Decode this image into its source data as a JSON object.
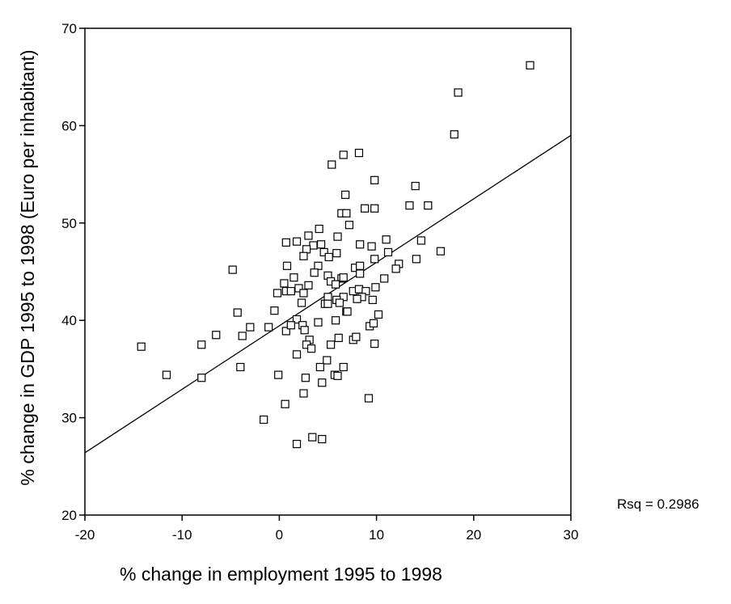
{
  "chart_data": {
    "type": "scatter",
    "xlabel": "% change in employment 1995 to 1998",
    "ylabel": "% change in GDP 1995 to 1998 (Euro per inhabitant)",
    "xlim": [
      -20,
      30
    ],
    "ylim": [
      20,
      70
    ],
    "xticks": [
      -20,
      -10,
      0,
      10,
      20,
      30
    ],
    "yticks": [
      20,
      30,
      40,
      50,
      60,
      70
    ],
    "annotation": "Rsq = 0.2986",
    "marker": "open-square",
    "grid": false,
    "fit_line": {
      "x": [
        -20,
        30
      ],
      "y": [
        26.4,
        59.0
      ]
    },
    "points": [
      [
        25.8,
        66.2
      ],
      [
        18.4,
        63.4
      ],
      [
        18.0,
        59.1
      ],
      [
        6.6,
        57.0
      ],
      [
        8.2,
        57.2
      ],
      [
        5.4,
        56.0
      ],
      [
        9.8,
        54.4
      ],
      [
        14.0,
        53.8
      ],
      [
        6.8,
        52.9
      ],
      [
        13.4,
        51.8
      ],
      [
        15.3,
        51.8
      ],
      [
        6.4,
        51.0
      ],
      [
        6.9,
        51.0
      ],
      [
        8.8,
        51.5
      ],
      [
        9.8,
        51.5
      ],
      [
        7.2,
        49.8
      ],
      [
        4.1,
        49.4
      ],
      [
        3.0,
        48.7
      ],
      [
        6.0,
        48.6
      ],
      [
        11.0,
        48.3
      ],
      [
        14.6,
        48.2
      ],
      [
        0.7,
        48.0
      ],
      [
        1.8,
        48.1
      ],
      [
        8.3,
        47.8
      ],
      [
        3.5,
        47.7
      ],
      [
        4.3,
        47.8
      ],
      [
        9.5,
        47.6
      ],
      [
        2.8,
        47.3
      ],
      [
        4.6,
        47.0
      ],
      [
        5.9,
        46.9
      ],
      [
        16.6,
        47.1
      ],
      [
        11.2,
        47.0
      ],
      [
        2.5,
        46.6
      ],
      [
        5.1,
        46.5
      ],
      [
        9.8,
        46.3
      ],
      [
        14.1,
        46.3
      ],
      [
        0.8,
        45.6
      ],
      [
        4.0,
        45.6
      ],
      [
        7.8,
        45.4
      ],
      [
        8.3,
        45.6
      ],
      [
        12.3,
        45.8
      ],
      [
        12.0,
        45.3
      ],
      [
        -4.8,
        45.2
      ],
      [
        3.6,
        44.9
      ],
      [
        5.0,
        44.6
      ],
      [
        8.3,
        44.8
      ],
      [
        1.5,
        44.4
      ],
      [
        6.4,
        44.3
      ],
      [
        6.6,
        44.4
      ],
      [
        10.8,
        44.3
      ],
      [
        5.3,
        44.0
      ],
      [
        0.5,
        43.8
      ],
      [
        5.8,
        43.7
      ],
      [
        3.0,
        43.6
      ],
      [
        9.9,
        43.4
      ],
      [
        2.0,
        43.3
      ],
      [
        0.7,
        43.0
      ],
      [
        1.2,
        43.0
      ],
      [
        7.6,
        43.0
      ],
      [
        8.2,
        43.2
      ],
      [
        8.9,
        43.0
      ],
      [
        -0.2,
        42.8
      ],
      [
        2.5,
        42.8
      ],
      [
        5.0,
        42.4
      ],
      [
        6.6,
        42.4
      ],
      [
        8.5,
        42.4
      ],
      [
        5.9,
        42.1
      ],
      [
        8.0,
        42.2
      ],
      [
        9.6,
        42.1
      ],
      [
        2.3,
        41.8
      ],
      [
        4.7,
        41.7
      ],
      [
        5.0,
        41.7
      ],
      [
        6.2,
        41.8
      ],
      [
        6.9,
        40.9
      ],
      [
        7.0,
        40.9
      ],
      [
        10.2,
        40.6
      ],
      [
        -4.3,
        40.8
      ],
      [
        -0.5,
        41.0
      ],
      [
        5.8,
        40.0
      ],
      [
        1.8,
        40.1
      ],
      [
        -6.5,
        38.5
      ],
      [
        -3.8,
        38.4
      ],
      [
        -3.0,
        39.3
      ],
      [
        -1.1,
        39.3
      ],
      [
        0.7,
        38.9
      ],
      [
        1.2,
        39.5
      ],
      [
        2.4,
        39.5
      ],
      [
        2.6,
        39.0
      ],
      [
        4.0,
        39.8
      ],
      [
        9.3,
        39.4
      ],
      [
        9.7,
        39.7
      ],
      [
        3.1,
        38.0
      ],
      [
        6.1,
        38.2
      ],
      [
        7.6,
        38.0
      ],
      [
        7.9,
        38.3
      ],
      [
        -14.2,
        37.3
      ],
      [
        -8.0,
        37.5
      ],
      [
        2.8,
        37.5
      ],
      [
        3.3,
        37.1
      ],
      [
        5.3,
        37.5
      ],
      [
        9.8,
        37.6
      ],
      [
        1.8,
        36.5
      ],
      [
        4.9,
        35.9
      ],
      [
        -4.0,
        35.2
      ],
      [
        4.2,
        35.2
      ],
      [
        6.6,
        35.2
      ],
      [
        -11.6,
        34.4
      ],
      [
        -0.1,
        34.4
      ],
      [
        5.7,
        34.4
      ],
      [
        6.0,
        34.3
      ],
      [
        -8.0,
        34.1
      ],
      [
        2.7,
        34.1
      ],
      [
        4.4,
        33.6
      ],
      [
        2.5,
        32.5
      ],
      [
        9.2,
        32.0
      ],
      [
        0.6,
        31.4
      ],
      [
        -1.6,
        29.8
      ],
      [
        3.4,
        28.0
      ],
      [
        4.4,
        27.8
      ],
      [
        1.8,
        27.3
      ]
    ]
  }
}
